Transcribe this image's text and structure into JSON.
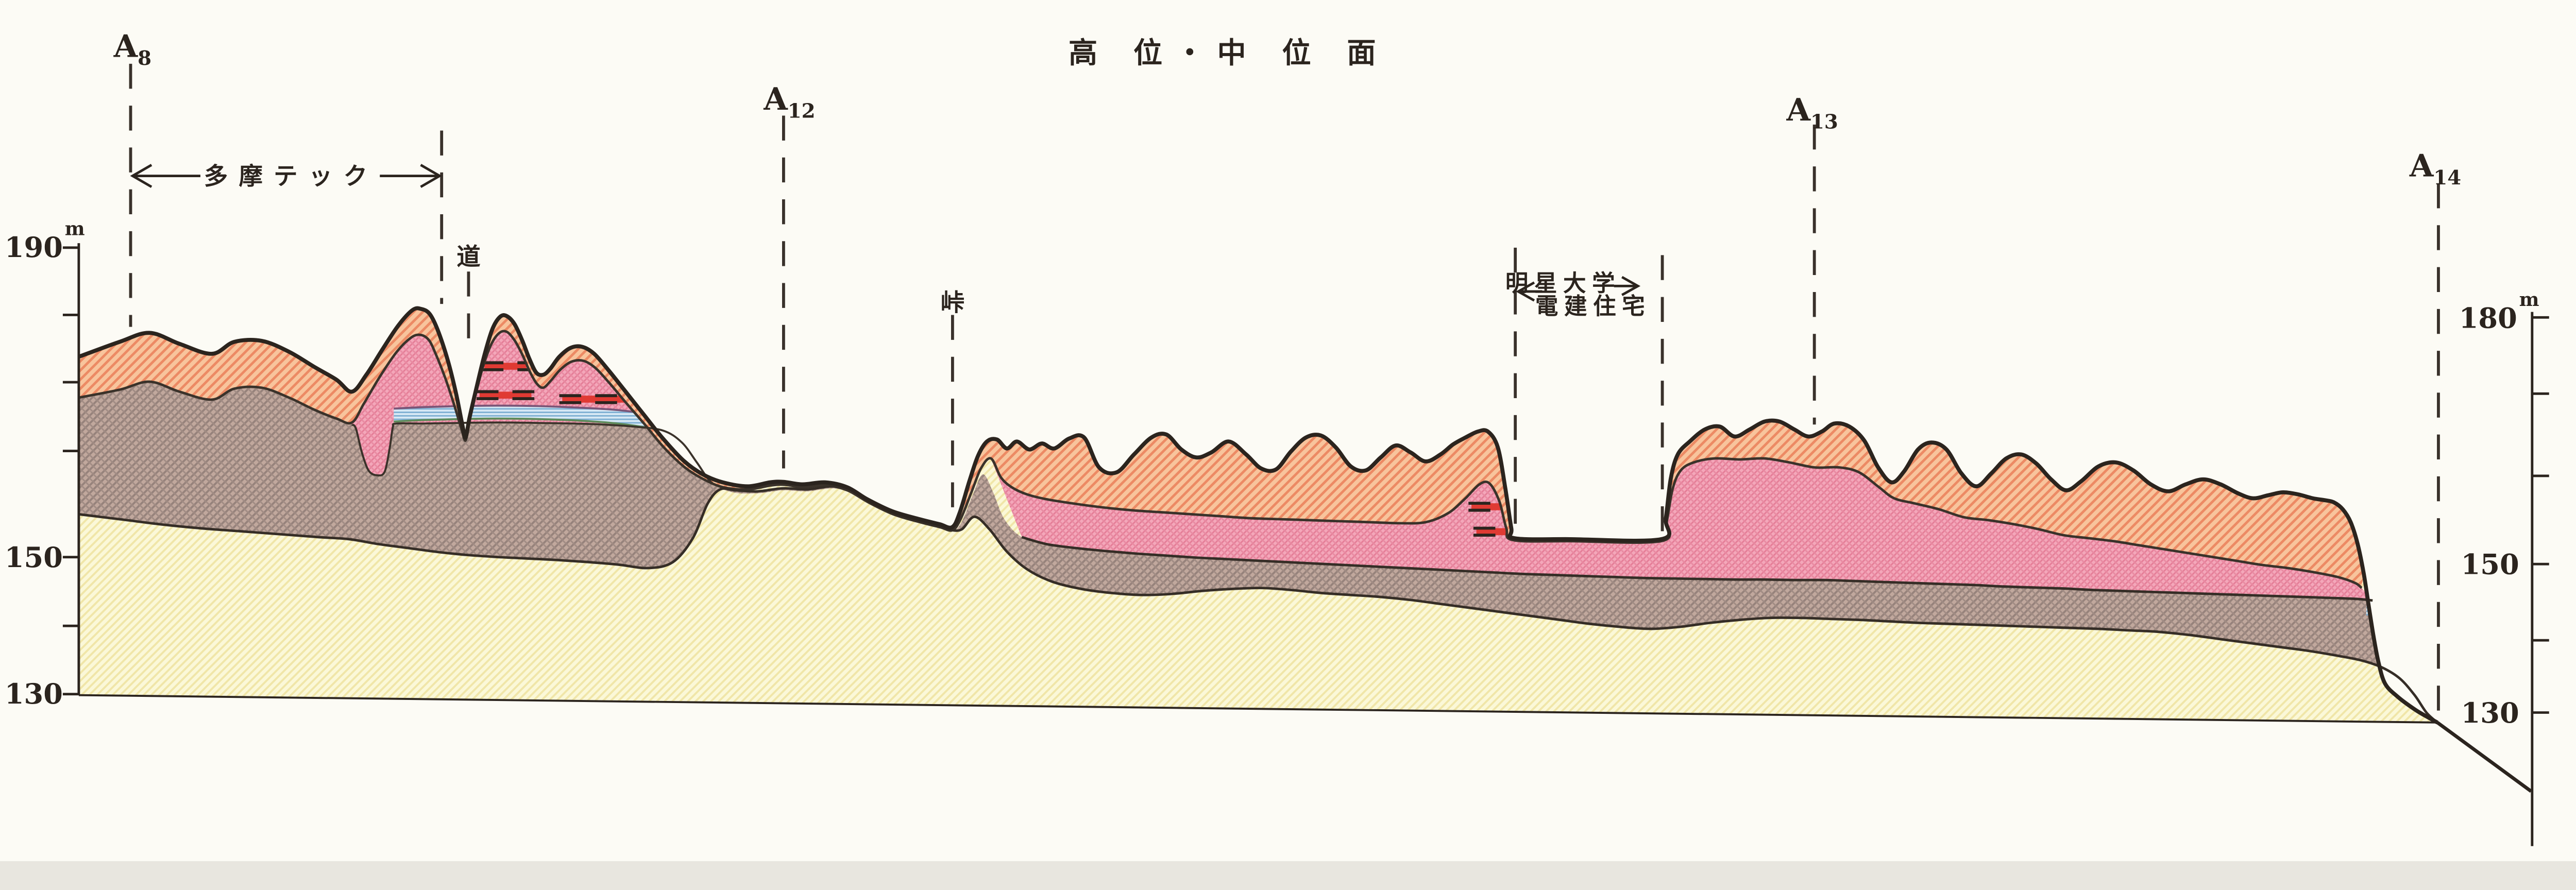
{
  "title": "高 位・中 位 面",
  "left_axis": {
    "unit": "m",
    "labels": [
      "190",
      "150",
      "130"
    ]
  },
  "right_axis": {
    "unit": "m",
    "labels": [
      "180",
      "150",
      "130"
    ]
  },
  "locators": [
    {
      "label": "A",
      "sub": "8"
    },
    {
      "label": "A",
      "sub": "12"
    },
    {
      "label": "A",
      "sub": "13"
    },
    {
      "label": "A",
      "sub": "14"
    }
  ],
  "annotations": {
    "tamatech": "多摩テック",
    "road": "道",
    "pass": "峠",
    "meisei_university": "明星大学",
    "denken_housing": "電建住宅"
  },
  "colors": {
    "loam_surface": "#f8c49c",
    "loam_hatch": "#ec8a64",
    "terrace_gravel_pink": "#f4a7ba",
    "pink_hatch": "#e57d97",
    "older_gravel_gray": "#c1a89d",
    "gray_hatch": "#96827b",
    "basement_yellow": "#fbf8d8",
    "yellow_hatch": "#f0e6a8",
    "clay_blue": "#d8e9f5",
    "blue_hatch": "#7fb0d3",
    "tephra_red": "#e03a33",
    "line": "#2b241e",
    "paper": "#fcfbf5"
  }
}
